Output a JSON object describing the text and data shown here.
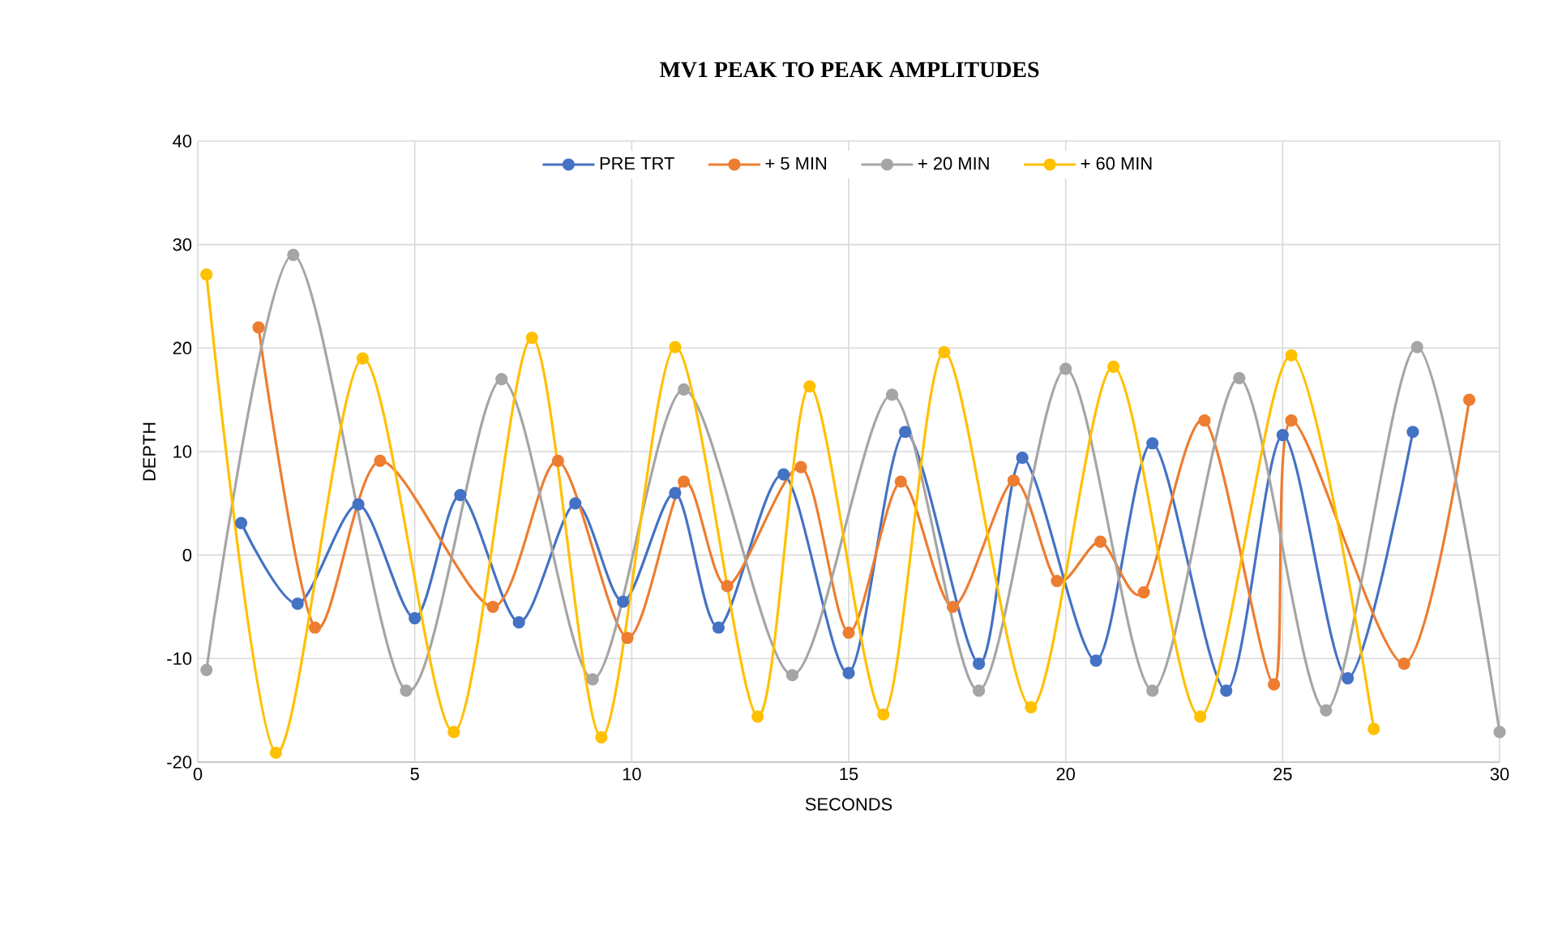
{
  "chart_data": {
    "type": "line",
    "title": "MV1 PEAK TO PEAK AMPLITUDES",
    "xlabel": "SECONDS",
    "ylabel": "DEPTH",
    "xlim": [
      0,
      30
    ],
    "xticks": [
      0,
      5,
      10,
      15,
      20,
      25,
      30
    ],
    "ylim": [
      -20,
      40
    ],
    "yticks": [
      -20,
      -10,
      0,
      10,
      20,
      30,
      40
    ],
    "grid": true,
    "legend": "top",
    "marker": "circle",
    "line_style": "solid",
    "series": [
      {
        "name": "PRE TRT",
        "color": "#4472c4",
        "x": [
          1.0,
          2.3,
          3.7,
          5.0,
          6.05,
          7.4,
          8.7,
          9.8,
          11.0,
          12.0,
          13.5,
          15.0,
          16.3,
          18.0,
          19.0,
          20.7,
          22.0,
          23.7,
          25.0,
          26.5,
          28.0
        ],
        "values": [
          3.1,
          -4.7,
          4.9,
          -6.1,
          5.8,
          -6.5,
          5.0,
          -4.5,
          6.0,
          -7.0,
          7.8,
          -11.4,
          11.9,
          -10.5,
          9.4,
          -10.2,
          10.8,
          -13.1,
          11.6,
          -11.9,
          11.9
        ]
      },
      {
        "name": "+ 5 MIN",
        "color": "#ed7d31",
        "x": [
          1.4,
          2.7,
          4.2,
          6.8,
          8.3,
          9.9,
          11.2,
          12.2,
          13.9,
          15.0,
          16.2,
          17.4,
          18.8,
          19.8,
          20.8,
          21.8,
          23.2,
          24.8,
          25.2,
          27.8,
          29.3
        ],
        "values": [
          22.0,
          -7.0,
          9.1,
          -5.0,
          9.1,
          -8.0,
          7.1,
          -3.0,
          8.5,
          -7.5,
          7.1,
          -5.0,
          7.2,
          -2.5,
          1.3,
          -3.6,
          13.0,
          -12.5,
          13.0,
          -10.5,
          15.0
        ]
      },
      {
        "name": "+ 20 MIN",
        "color": "#a5a5a5",
        "x": [
          0.2,
          2.2,
          4.8,
          7.0,
          9.1,
          11.2,
          13.7,
          16.0,
          18.0,
          20.0,
          22.0,
          24.0,
          26.0,
          28.1,
          30.0
        ],
        "values": [
          -11.1,
          29.0,
          -13.1,
          17.0,
          -12.0,
          16.0,
          -11.6,
          15.5,
          -13.1,
          18.0,
          -13.1,
          17.1,
          -15.0,
          20.1,
          -17.1
        ]
      },
      {
        "name": "+ 60 MIN",
        "color": "#ffc000",
        "x": [
          0.2,
          1.8,
          3.8,
          5.9,
          7.7,
          9.3,
          11.0,
          12.9,
          14.1,
          15.8,
          17.2,
          19.2,
          21.1,
          23.1,
          25.2,
          27.1
        ],
        "values": [
          27.1,
          -19.1,
          19.0,
          -17.1,
          21.0,
          -17.6,
          20.1,
          -15.6,
          16.3,
          -15.4,
          19.6,
          -14.7,
          18.2,
          -15.6,
          19.3,
          -16.8
        ]
      }
    ]
  }
}
